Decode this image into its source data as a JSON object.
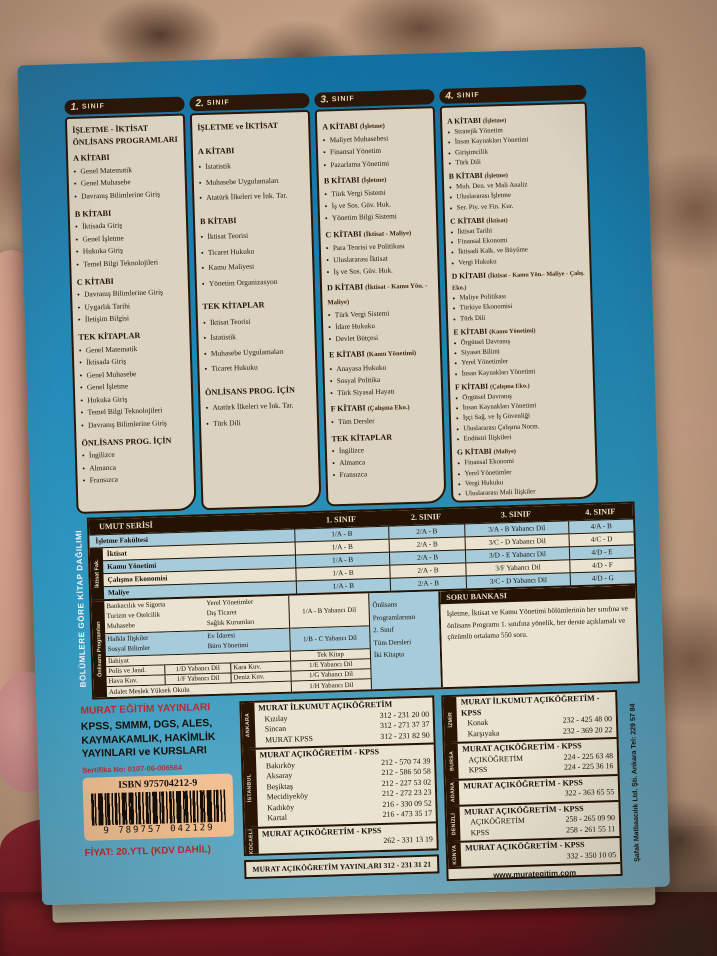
{
  "colors": {
    "cover_blue": "#1b85b5",
    "ink_dark": "#241303",
    "panel_cream": "#dbd3bf",
    "row_blue": "#a6cbdb",
    "accent_red": "#c0272d",
    "barcode_bg": "#f2c193"
  },
  "classes": [
    {
      "tab_no": "1.",
      "tab_label": "SINIF",
      "subtitle": "İŞLETME - İKTİSAT\nÖNLİSANS PROGRAMLARI",
      "sections": [
        {
          "heading": "A KİTABI",
          "note": "",
          "items": [
            "Genel Matematik",
            "Genel Muhasebe",
            "Davranış Bilimlerine Giriş"
          ]
        },
        {
          "heading": "B KİTABI",
          "note": "",
          "items": [
            "İktisada Giriş",
            "Genel İşletme",
            "Hukuka Giriş",
            "Temel Bilgi Teknolojileri"
          ]
        },
        {
          "heading": "C KİTABI",
          "note": "",
          "items": [
            "Davranış Bilimlerine Giriş",
            "Uygarlık Tarihi",
            "İletişim Bilgisi"
          ]
        },
        {
          "heading": "TEK KİTAPLAR",
          "note": "",
          "items": [
            "Genel Matematik",
            "İktisada Giriş",
            "Genel Muhasebe",
            "Genel İşletme",
            "Hukuka Giriş",
            "Temel Bilgi Teknolojileri",
            "Davranış Bilimlerine Giriş"
          ]
        },
        {
          "heading": "ÖNLİSANS PROG. İÇİN",
          "note": "",
          "items": [
            "İngilizce",
            "Almanca",
            "Fransızca"
          ]
        }
      ]
    },
    {
      "tab_no": "2.",
      "tab_label": "SINIF",
      "subtitle": "İŞLETME ve İKTİSAT",
      "sections": [
        {
          "heading": "A KİTABI",
          "note": "",
          "items": [
            "İstatistik",
            "Muhasebe Uygulamaları",
            "Atatürk İlkeleri ve İnk. Tar."
          ]
        },
        {
          "heading": "B KİTABI",
          "note": "",
          "items": [
            "İktisat Teorisi",
            "Ticaret Hukuku",
            "Kamu Maliyesi",
            "Yönetim Organizasyon"
          ]
        },
        {
          "heading": "TEK KİTAPLAR",
          "note": "",
          "items": [
            "İktisat Teorisi",
            "İstatistik",
            "Muhasebe Uygulamaları",
            "Ticaret Hukuku"
          ]
        },
        {
          "heading": "ÖNLİSANS PROG. İÇİN",
          "note": "",
          "items": [
            "Atatürk İlkeleri ve İnk. Tar.",
            "Türk Dili"
          ]
        }
      ]
    },
    {
      "tab_no": "3.",
      "tab_label": "SINIF",
      "subtitle": "",
      "sections": [
        {
          "heading": "A KİTABI",
          "note": "(İşletme)",
          "items": [
            "Maliyet Muhasebesi",
            "Finansal Yönetim",
            "Pazarlama Yönetimi"
          ]
        },
        {
          "heading": "B KİTABI",
          "note": "(İşletme)",
          "items": [
            "Türk Vergi Sistemi",
            "İş ve Sos. Güv. Huk.",
            "Yönetim Bilgi Sistemi"
          ]
        },
        {
          "heading": "C KİTABI",
          "note": "(İktisat - Maliye)",
          "items": [
            "Para Teorisi ve Politikası",
            "Uluslararası İktisat",
            "İş ve Sos. Güv. Huk."
          ]
        },
        {
          "heading": "D KİTABI",
          "note": "(İktisat - Kamu Yön. - Maliye)",
          "items": [
            "Türk Vergi Sistemi",
            "İdare Hukuku",
            "Devlet Bütçesi"
          ]
        },
        {
          "heading": "E KİTABI",
          "note": "(Kamu Yönetimi)",
          "items": [
            "Anayasa Hukuku",
            "Sosyal Politika",
            "Türk Siyasal Hayatı"
          ]
        },
        {
          "heading": "F KİTABI",
          "note": "(Çalışma Eko.)",
          "items": [
            "Tüm Dersler"
          ]
        },
        {
          "heading": "TEK KİTAPLAR",
          "note": "",
          "items": [
            "İngilizce",
            "Almanca",
            "Fransızca"
          ]
        }
      ]
    },
    {
      "tab_no": "4.",
      "tab_label": "SINIF",
      "subtitle": "",
      "sections": [
        {
          "heading": "A KİTABI",
          "note": "(İşletme)",
          "items": [
            "Stratejik Yönetim",
            "İnsan Kaynakları Yönetimi",
            "Girişimcilik",
            "Türk Dili"
          ]
        },
        {
          "heading": "B KİTABI",
          "note": "(İşletme)",
          "items": [
            "Muh. Den. ve Mali Analiz",
            "Uluslararası İşletme",
            "Ser. Piy. ve Fin. Kur."
          ]
        },
        {
          "heading": "C KİTABI",
          "note": "(İktisat)",
          "items": [
            "İktisat Tarihi",
            "Finansal Ekonomi",
            "İktisadi Kalk. ve Büyüme",
            "Vergi Hukuku"
          ]
        },
        {
          "heading": "D KİTABI",
          "note": "(İktisat - Kamu Yön.- Maliye - Çalış. Eko.)",
          "items": [
            "Maliye Politikası",
            "Türkiye Ekonomisi",
            "Türk Dili"
          ]
        },
        {
          "heading": "E KİTABI",
          "note": "(Kamu Yönetimi)",
          "items": [
            "Örgütsel Davranış",
            "Siyaset Bilimi",
            "Yerel Yönetimler",
            "İnsan Kaynakları Yönetimi"
          ]
        },
        {
          "heading": "F KİTABI",
          "note": "(Çalışma Eko.)",
          "items": [
            "Örgütsel Davranış",
            "İnsan Kaynakları Yönetimi",
            "İşçi Sağ. ve İş Güvenliği",
            "Uluslararası Çalışma Norm.",
            "Endüstri İlişkileri"
          ]
        },
        {
          "heading": "G KİTABI",
          "note": "(Maliye)",
          "items": [
            "Finansal Ekonomi",
            "Yerel Yönetimler",
            "Vergi Hukuku",
            "Uluslararası Mali İlişkiler"
          ]
        }
      ]
    }
  ],
  "table": {
    "side_title": "BÖLÜMLERE GÖRE KİTAP DAĞILIMI",
    "group1_label": "İktisat Fak.",
    "group2_label": "Önlisans Programları",
    "header": [
      "UMUT SERİSİ",
      "1. SINIF",
      "2. SINIF",
      "3. SINIF",
      "4. SINIF"
    ],
    "upper_rows": [
      {
        "label": "İşletme Fakültesi",
        "c1": "1/A - B",
        "c2": "2/A - B",
        "c3": "3/A - B Yabancı Dil",
        "c4": "4/A - B"
      },
      {
        "label": "İktisat",
        "c1": "1/A - B",
        "c2": "2/A - B",
        "c3": "3/C - D Yabancı Dil",
        "c4": "4/C - D"
      },
      {
        "label": "Kamu Yönetimi",
        "c1": "1/A - B",
        "c2": "2/A - B",
        "c3": "3/D - E Yabancı Dil",
        "c4": "4/D - E"
      },
      {
        "label": "Çalışma Ekonomisi",
        "c1": "1/A - B",
        "c2": "2/A - B",
        "c3": "3/F Yabancı Dil",
        "c4": "4/D - F"
      },
      {
        "label": "Maliye",
        "c1": "1/A - B",
        "c2": "2/A - B",
        "c3": "3/C - D Yabancı Dil",
        "c4": "4/D - G"
      }
    ],
    "onlisans": {
      "groups": [
        {
          "colA": [
            "Bankacılık ve Sigorta",
            "Turizm ve Otelcilik",
            "Muhasebe"
          ],
          "colB": [
            "Yerel Yönetimler",
            "Dış Ticaret",
            "Sağlık Kurumları"
          ],
          "code": "1/A - B Yabancı Dil"
        },
        {
          "colA": [
            "Halkla İlişkiler",
            "Sosyal Bilimler"
          ],
          "colB": [
            "Ev İdaresi",
            "Büro Yönetimi"
          ],
          "code": "1/B - C Yabancı Dil"
        }
      ],
      "single_rows": [
        {
          "label": "İlahiyat",
          "code": "Tek Kitap"
        },
        {
          "a": "Polis ve Jand.",
          "a_code": "1/D Yabancı Dil",
          "b": "Kara Kuv.",
          "code": "1/E Yabancı Dil"
        },
        {
          "a": "Hava Kuv.",
          "a_code": "1/F Yabancı Dil",
          "b": "Deniz Kuv.",
          "code": "1/G Yabancı Dil"
        },
        {
          "label": "Adalet Meslek Yüksek Okulu",
          "code": "1/H Yabancı Dil"
        }
      ],
      "note": "Önlisans\nProgramlarının\n2. Sınıf\nTüm Dersleri\nİki Kitapta",
      "soru_bankasi": {
        "title": "SORU BANKASI",
        "body": "İşletme, İktisat ve Kamu Yönetimi bölümlerinin her sınıfına ve önlisans Programı 1. sınıfına yönelik, her derste açıklamalı ve çözümlü ortalama 550 soru."
      }
    }
  },
  "publisher": {
    "name": "MURAT EĞİTİM YAYINLARI",
    "lines": "KPSS, SMMM, DGS, ALES,\nKAYMAKAMLIK, HAKİMLİK\nYAYINLARI ve KURSLARI",
    "certificate": "Sertifika No: 0107-06-006564",
    "isbn": "ISBN 975704212-9",
    "barcode_digits": "9 789757 042129",
    "price": "FİYAT: 20.YTL (KDV DAHİL)"
  },
  "contacts_left": {
    "sections": [
      {
        "city": "ANKARA",
        "title": "MURAT İLKUMUT AÇIKÖĞRETİM",
        "rows": [
          {
            "name": "Kızılay",
            "phone": "312 - 231 20 00"
          },
          {
            "name": "Sincan",
            "phone": "312 - 271 37 37"
          },
          {
            "name": "MURAT KPSS",
            "phone": "312 - 231 82 90"
          }
        ]
      },
      {
        "city": "İSTANBUL",
        "title": "MURAT AÇIKÖĞRETİM - KPSS",
        "rows": [
          {
            "name": "Bakırköy",
            "phone": "212 - 570 74 39"
          },
          {
            "name": "Aksaray",
            "phone": "212 - 586 50 58"
          },
          {
            "name": "Beşiktaş",
            "phone": "212 - 227 53 02"
          },
          {
            "name": "Mecidiyeköy",
            "phone": "212 - 272 23 23"
          },
          {
            "name": "Kadıköy",
            "phone": "216 - 330 09 52"
          },
          {
            "name": "Kartal",
            "phone": "216 - 473 35 17"
          }
        ]
      },
      {
        "city": "KOCAELİ",
        "title": "MURAT AÇIKÖĞRETİM - KPSS",
        "rows": [
          {
            "name": "",
            "phone": "262 - 331 13 19"
          }
        ]
      }
    ],
    "footer": "MURAT AÇIKÖĞRETİM YAYINLARI  312 - 231 31 21"
  },
  "contacts_right": {
    "sections": [
      {
        "city": "İZMİR",
        "title": "MURAT İLKUMUT AÇIKÖĞRETİM - KPSS",
        "rows": [
          {
            "name": "Konak",
            "phone": "232 - 425 48 00"
          },
          {
            "name": "Karşıyaka",
            "phone": "232 - 369 20 22"
          }
        ]
      },
      {
        "city": "BURSA",
        "title": "MURAT AÇIKÖĞRETİM - KPSS",
        "rows": [
          {
            "name": "AÇIKÖĞRETİM",
            "phone": "224 - 225 63 48"
          },
          {
            "name": "KPSS",
            "phone": "224 - 225 36 16"
          }
        ]
      },
      {
        "city": "ADANA",
        "title": "MURAT AÇIKÖĞRETİM - KPSS",
        "rows": [
          {
            "name": "",
            "phone": "322 - 363 65 55"
          }
        ]
      },
      {
        "city": "DENİZLİ",
        "title": "MURAT AÇIKÖĞRETİM - KPSS",
        "rows": [
          {
            "name": "AÇIKÖĞRETİM",
            "phone": "258 - 265 09 90"
          },
          {
            "name": "KPSS",
            "phone": "258 - 261 55 11"
          }
        ]
      },
      {
        "city": "KONYA",
        "title": "MURAT AÇIKÖĞRETİM - KPSS",
        "rows": [
          {
            "name": "",
            "phone": "332 - 350 10 05"
          }
        ]
      }
    ],
    "website": "www.murategitim.com"
  },
  "printer": "Şafak Matbaacılık Ltd. Şti. Ankara Tel: 229 57 84"
}
